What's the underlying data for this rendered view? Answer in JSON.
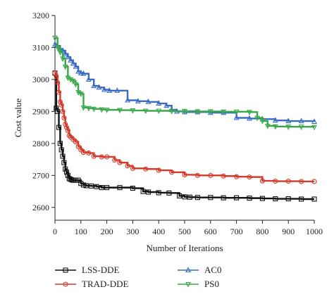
{
  "chart_data": {
    "type": "line",
    "xlabel": "Number of Iterations",
    "ylabel": "Cost value",
    "xlim": [
      0,
      1000
    ],
    "ylim": [
      2560,
      3200
    ],
    "xticks": [
      0,
      100,
      200,
      300,
      400,
      500,
      600,
      700,
      800,
      900,
      1000
    ],
    "yticks": [
      2600,
      2700,
      2800,
      2900,
      3000,
      3100,
      3200
    ],
    "grid": false,
    "legend_placement": "bottom",
    "series": [
      {
        "name": "LSS-DDE",
        "color": "#111111",
        "marker": "square",
        "x": [
          0,
          5,
          10,
          15,
          20,
          25,
          30,
          35,
          40,
          45,
          50,
          55,
          60,
          65,
          70,
          80,
          90,
          100,
          110,
          120,
          140,
          160,
          180,
          200,
          250,
          300,
          340,
          360,
          400,
          440,
          480,
          500,
          520,
          550,
          600,
          650,
          700,
          750,
          800,
          850,
          900,
          950,
          1000
        ],
        "y": [
          3020,
          2910,
          2900,
          2850,
          2800,
          2780,
          2760,
          2740,
          2720,
          2710,
          2700,
          2690,
          2688,
          2686,
          2685,
          2685,
          2685,
          2675,
          2670,
          2668,
          2667,
          2665,
          2662,
          2662,
          2662,
          2660,
          2650,
          2648,
          2646,
          2645,
          2636,
          2633,
          2632,
          2631,
          2631,
          2630,
          2630,
          2629,
          2628,
          2627,
          2627,
          2626,
          2626
        ]
      },
      {
        "name": "TRAD-DDE",
        "color": "#d43a2a",
        "marker": "circle",
        "x": [
          0,
          5,
          10,
          15,
          20,
          25,
          30,
          35,
          40,
          45,
          50,
          55,
          60,
          70,
          80,
          90,
          100,
          110,
          130,
          150,
          180,
          200,
          230,
          250,
          280,
          300,
          350,
          400,
          450,
          500,
          550,
          600,
          650,
          700,
          750,
          800,
          850,
          900,
          950,
          1000
        ],
        "y": [
          3020,
          3010,
          2990,
          2960,
          2930,
          2920,
          2900,
          2880,
          2860,
          2850,
          2840,
          2825,
          2820,
          2812,
          2805,
          2790,
          2780,
          2772,
          2770,
          2760,
          2758,
          2758,
          2748,
          2740,
          2730,
          2722,
          2720,
          2716,
          2710,
          2702,
          2700,
          2700,
          2698,
          2696,
          2695,
          2683,
          2682,
          2682,
          2681,
          2681
        ]
      },
      {
        "name": "AC0",
        "color": "#3a6bc4",
        "marker": "triangle-up",
        "x": [
          0,
          10,
          20,
          30,
          40,
          50,
          60,
          70,
          80,
          90,
          100,
          110,
          130,
          150,
          170,
          190,
          210,
          240,
          280,
          320,
          360,
          400,
          430,
          450,
          470,
          500,
          550,
          600,
          650,
          700,
          750,
          800,
          850,
          900,
          950,
          1000
        ],
        "y": [
          3110,
          3105,
          3095,
          3090,
          3080,
          3070,
          3060,
          3050,
          3040,
          3025,
          3020,
          3018,
          3000,
          2980,
          2975,
          2968,
          2965,
          2965,
          2935,
          2932,
          2930,
          2925,
          2918,
          2905,
          2900,
          2898,
          2898,
          2896,
          2896,
          2880,
          2878,
          2876,
          2872,
          2870,
          2870,
          2868
        ]
      },
      {
        "name": "PS0",
        "color": "#3aa84a",
        "marker": "triangle-down",
        "x": [
          0,
          10,
          20,
          30,
          40,
          50,
          60,
          70,
          80,
          90,
          100,
          110,
          130,
          150,
          180,
          200,
          250,
          300,
          350,
          400,
          450,
          500,
          550,
          600,
          650,
          700,
          750,
          780,
          800,
          820,
          850,
          900,
          950,
          1000
        ],
        "y": [
          3130,
          3100,
          3085,
          3065,
          3040,
          3005,
          3000,
          2995,
          2985,
          2960,
          2955,
          2912,
          2910,
          2908,
          2906,
          2905,
          2904,
          2903,
          2902,
          2902,
          2901,
          2901,
          2900,
          2900,
          2899,
          2899,
          2898,
          2880,
          2870,
          2855,
          2853,
          2852,
          2852,
          2851
        ]
      }
    ]
  }
}
